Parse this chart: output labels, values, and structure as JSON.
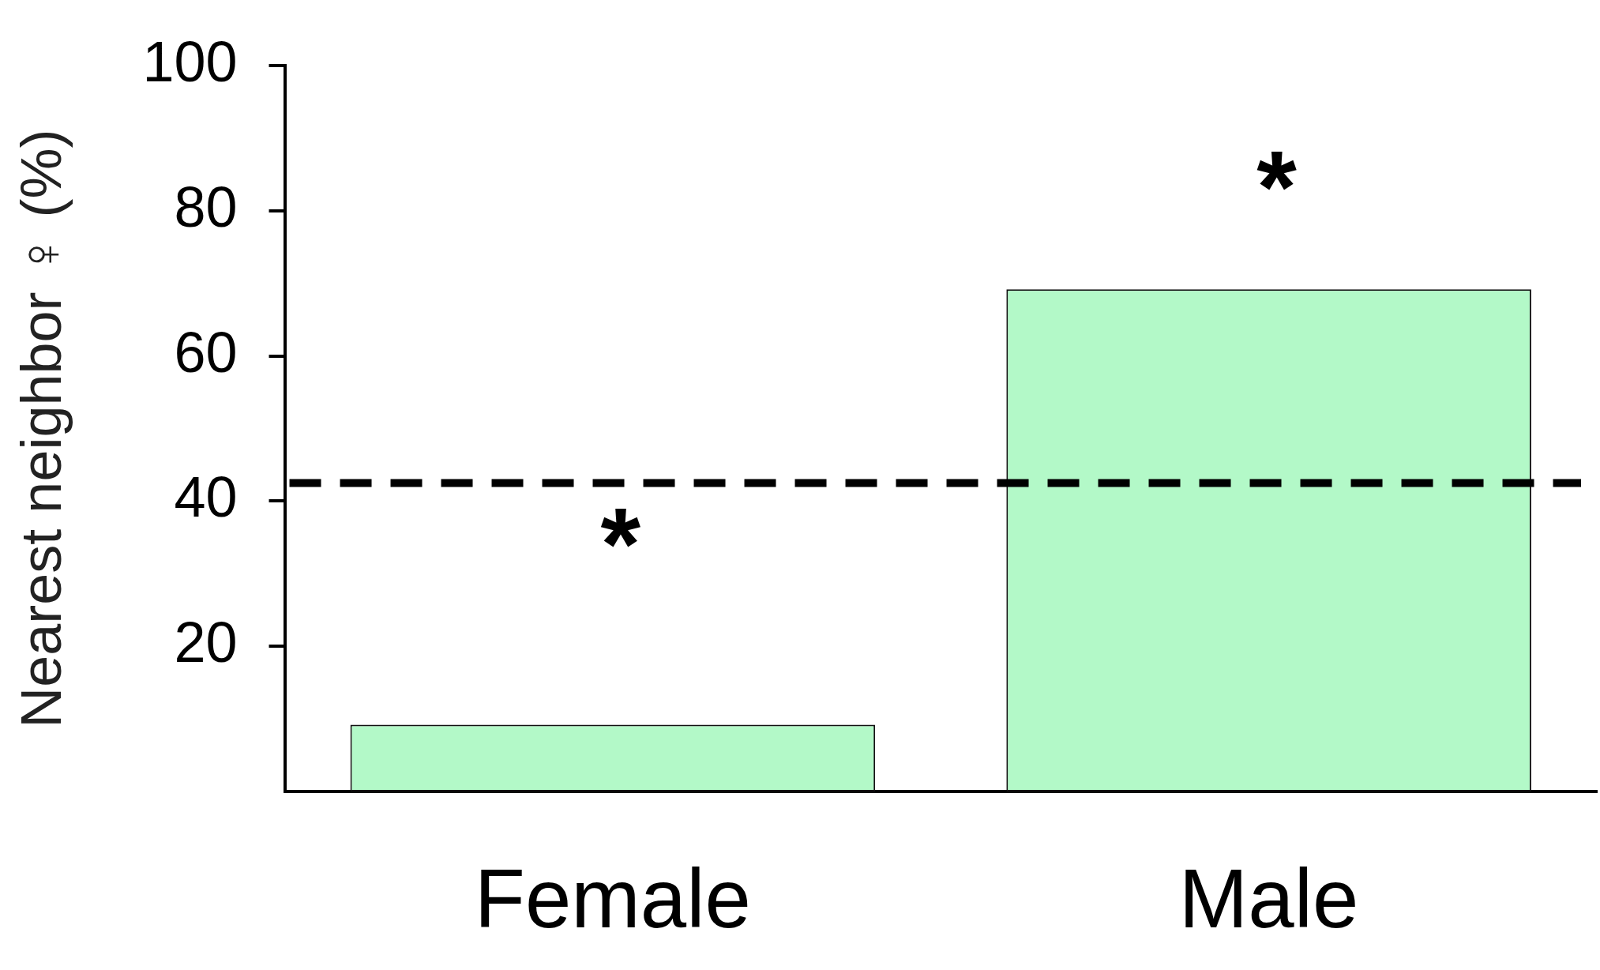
{
  "chart_data": {
    "type": "bar",
    "ylabel": "Nearest neighbor ♀ (%)",
    "categories": [
      "Female",
      "Male"
    ],
    "values": [
      9.2,
      69.2
    ],
    "color": "#b3f9c8",
    "ylim": [
      0,
      100
    ],
    "yticks": [
      20,
      40,
      60,
      80,
      100
    ],
    "grid": false,
    "legend": false,
    "ref_lines": [
      {
        "axis": "y",
        "value": 42.5,
        "line_style": "dashed",
        "color": "#000000"
      }
    ],
    "annotations": [
      "*",
      "*"
    ]
  }
}
